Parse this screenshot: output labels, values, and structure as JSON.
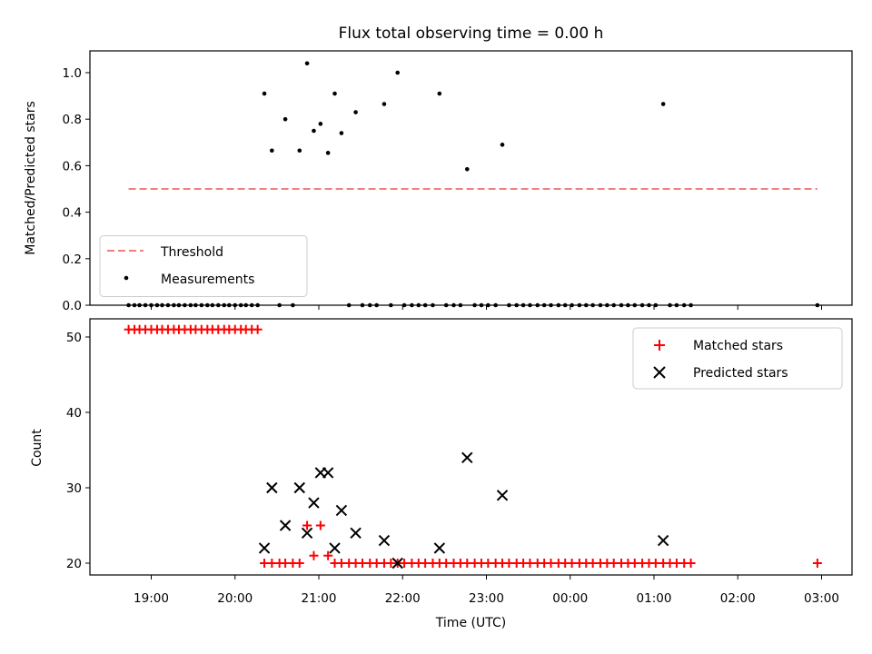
{
  "chart_data": [
    {
      "type": "scatter",
      "title": "Flux total observing time = 0.00 h",
      "xlabel": "",
      "ylabel": "Matched/Predicted stars",
      "ylim": [
        0,
        1.1
      ],
      "yticks": [
        0.0,
        0.2,
        0.4,
        0.6,
        0.8,
        1.0
      ],
      "ytick_labels": [
        "0.0",
        "0.2",
        "0.4",
        "0.6",
        "0.8",
        "1.0"
      ],
      "xlim_hours": [
        18.3,
        27.4
      ],
      "xticks_hours": [
        19,
        20,
        21,
        22,
        23,
        24,
        25,
        26,
        27
      ],
      "xtick_labels": [
        "19:00",
        "20:00",
        "21:00",
        "22:00",
        "23:00",
        "00:00",
        "01:00",
        "02:00",
        "03:00"
      ],
      "grid": false,
      "legend_position": "lower-left",
      "threshold": {
        "name": "Threshold",
        "value": 0.5,
        "x_hours": [
          18.73,
          26.95
        ],
        "color": "#f08080",
        "style": "dashed"
      },
      "series": [
        {
          "name": "Measurements",
          "color": "#000000",
          "marker": "dot",
          "points": [
            [
              20.35,
              0.91
            ],
            [
              20.44,
              0.665
            ],
            [
              20.6,
              0.8
            ],
            [
              20.77,
              0.665
            ],
            [
              20.86,
              1.04
            ],
            [
              20.94,
              0.75
            ],
            [
              21.02,
              0.78
            ],
            [
              21.11,
              0.655
            ],
            [
              21.19,
              0.91
            ],
            [
              21.27,
              0.74
            ],
            [
              21.44,
              0.83
            ],
            [
              21.78,
              0.865
            ],
            [
              21.94,
              1.0
            ],
            [
              22.44,
              0.91
            ],
            [
              22.77,
              0.585
            ],
            [
              23.19,
              0.69
            ],
            [
              25.11,
              0.865
            ],
            [
              18.73,
              0
            ],
            [
              18.8,
              0
            ],
            [
              18.86,
              0
            ],
            [
              18.93,
              0
            ],
            [
              19.0,
              0
            ],
            [
              19.07,
              0
            ],
            [
              19.13,
              0
            ],
            [
              19.2,
              0
            ],
            [
              19.27,
              0
            ],
            [
              19.33,
              0
            ],
            [
              19.4,
              0
            ],
            [
              19.47,
              0
            ],
            [
              19.53,
              0
            ],
            [
              19.6,
              0
            ],
            [
              19.67,
              0
            ],
            [
              19.73,
              0
            ],
            [
              19.8,
              0
            ],
            [
              19.87,
              0
            ],
            [
              19.93,
              0
            ],
            [
              20.0,
              0
            ],
            [
              20.07,
              0
            ],
            [
              20.13,
              0
            ],
            [
              20.2,
              0
            ],
            [
              20.27,
              0
            ],
            [
              20.53,
              0
            ],
            [
              20.69,
              0
            ],
            [
              21.36,
              0
            ],
            [
              21.52,
              0
            ],
            [
              21.61,
              0
            ],
            [
              21.69,
              0
            ],
            [
              21.86,
              0
            ],
            [
              22.02,
              0
            ],
            [
              22.11,
              0
            ],
            [
              22.19,
              0
            ],
            [
              22.27,
              0
            ],
            [
              22.36,
              0
            ],
            [
              22.52,
              0
            ],
            [
              22.61,
              0
            ],
            [
              22.69,
              0
            ],
            [
              22.86,
              0
            ],
            [
              22.94,
              0
            ],
            [
              23.02,
              0
            ],
            [
              23.11,
              0
            ],
            [
              23.27,
              0
            ],
            [
              23.36,
              0
            ],
            [
              23.44,
              0
            ],
            [
              23.52,
              0
            ],
            [
              23.61,
              0
            ],
            [
              23.69,
              0
            ],
            [
              23.77,
              0
            ],
            [
              23.86,
              0
            ],
            [
              23.94,
              0
            ],
            [
              24.02,
              0
            ],
            [
              24.11,
              0
            ],
            [
              24.19,
              0
            ],
            [
              24.27,
              0
            ],
            [
              24.36,
              0
            ],
            [
              24.44,
              0
            ],
            [
              24.52,
              0
            ],
            [
              24.61,
              0
            ],
            [
              24.69,
              0
            ],
            [
              24.77,
              0
            ],
            [
              24.86,
              0
            ],
            [
              24.94,
              0
            ],
            [
              25.02,
              0
            ],
            [
              25.19,
              0
            ],
            [
              25.27,
              0
            ],
            [
              25.36,
              0
            ],
            [
              25.44,
              0
            ],
            [
              26.95,
              0
            ]
          ]
        }
      ]
    },
    {
      "type": "scatter",
      "title": "",
      "xlabel": "Time (UTC)",
      "ylabel": "Count",
      "ylim": [
        18.5,
        52.5
      ],
      "yticks": [
        20,
        30,
        40,
        50
      ],
      "ytick_labels": [
        "20",
        "30",
        "40",
        "50"
      ],
      "xlim_hours": [
        18.3,
        27.4
      ],
      "xticks_hours": [
        19,
        20,
        21,
        22,
        23,
        24,
        25,
        26,
        27
      ],
      "xtick_labels": [
        "19:00",
        "20:00",
        "21:00",
        "22:00",
        "23:00",
        "00:00",
        "01:00",
        "02:00",
        "03:00"
      ],
      "grid": false,
      "legend_position": "upper-right",
      "series": [
        {
          "name": "Matched stars",
          "color": "#ff0000",
          "marker": "plus",
          "points": [
            [
              18.73,
              51
            ],
            [
              18.8,
              51
            ],
            [
              18.86,
              51
            ],
            [
              18.93,
              51
            ],
            [
              19.0,
              51
            ],
            [
              19.07,
              51
            ],
            [
              19.13,
              51
            ],
            [
              19.2,
              51
            ],
            [
              19.27,
              51
            ],
            [
              19.33,
              51
            ],
            [
              19.4,
              51
            ],
            [
              19.47,
              51
            ],
            [
              19.53,
              51
            ],
            [
              19.6,
              51
            ],
            [
              19.67,
              51
            ],
            [
              19.73,
              51
            ],
            [
              19.8,
              51
            ],
            [
              19.87,
              51
            ],
            [
              19.93,
              51
            ],
            [
              20.0,
              51
            ],
            [
              20.07,
              51
            ],
            [
              20.13,
              51
            ],
            [
              20.2,
              51
            ],
            [
              20.27,
              51
            ],
            [
              20.35,
              20
            ],
            [
              20.44,
              20
            ],
            [
              20.53,
              20
            ],
            [
              20.6,
              20
            ],
            [
              20.69,
              20
            ],
            [
              20.77,
              20
            ],
            [
              20.86,
              25
            ],
            [
              20.94,
              21
            ],
            [
              21.02,
              25
            ],
            [
              21.11,
              21
            ],
            [
              21.19,
              20
            ],
            [
              21.27,
              20
            ],
            [
              21.36,
              20
            ],
            [
              21.44,
              20
            ],
            [
              21.52,
              20
            ],
            [
              21.61,
              20
            ],
            [
              21.69,
              20
            ],
            [
              21.78,
              20
            ],
            [
              21.86,
              20
            ],
            [
              21.94,
              20
            ],
            [
              22.02,
              20
            ],
            [
              22.11,
              20
            ],
            [
              22.19,
              20
            ],
            [
              22.27,
              20
            ],
            [
              22.36,
              20
            ],
            [
              22.44,
              20
            ],
            [
              22.52,
              20
            ],
            [
              22.61,
              20
            ],
            [
              22.69,
              20
            ],
            [
              22.77,
              20
            ],
            [
              22.86,
              20
            ],
            [
              22.94,
              20
            ],
            [
              23.02,
              20
            ],
            [
              23.11,
              20
            ],
            [
              23.19,
              20
            ],
            [
              23.27,
              20
            ],
            [
              23.36,
              20
            ],
            [
              23.44,
              20
            ],
            [
              23.52,
              20
            ],
            [
              23.61,
              20
            ],
            [
              23.69,
              20
            ],
            [
              23.77,
              20
            ],
            [
              23.86,
              20
            ],
            [
              23.94,
              20
            ],
            [
              24.02,
              20
            ],
            [
              24.11,
              20
            ],
            [
              24.19,
              20
            ],
            [
              24.27,
              20
            ],
            [
              24.36,
              20
            ],
            [
              24.44,
              20
            ],
            [
              24.52,
              20
            ],
            [
              24.61,
              20
            ],
            [
              24.69,
              20
            ],
            [
              24.77,
              20
            ],
            [
              24.86,
              20
            ],
            [
              24.94,
              20
            ],
            [
              25.02,
              20
            ],
            [
              25.11,
              20
            ],
            [
              25.19,
              20
            ],
            [
              25.27,
              20
            ],
            [
              25.36,
              20
            ],
            [
              25.44,
              20
            ],
            [
              26.95,
              20
            ]
          ]
        },
        {
          "name": "Predicted stars",
          "color": "#000000",
          "marker": "x",
          "points": [
            [
              20.35,
              22
            ],
            [
              20.44,
              30
            ],
            [
              20.6,
              25
            ],
            [
              20.77,
              30
            ],
            [
              20.86,
              24
            ],
            [
              20.94,
              28
            ],
            [
              21.02,
              32
            ],
            [
              21.11,
              32
            ],
            [
              21.19,
              22
            ],
            [
              21.27,
              27
            ],
            [
              21.44,
              24
            ],
            [
              21.78,
              23
            ],
            [
              21.94,
              20
            ],
            [
              22.44,
              22
            ],
            [
              22.77,
              34
            ],
            [
              23.19,
              29
            ],
            [
              25.11,
              23
            ]
          ]
        }
      ]
    }
  ]
}
